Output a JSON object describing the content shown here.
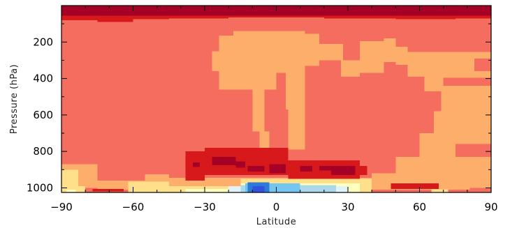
{
  "chart_data": {
    "type": "heatmap",
    "title": "",
    "xlabel": "Latitude",
    "ylabel": "Pressure (hPa)",
    "xlim": [
      -90,
      90
    ],
    "ylim": [
      1025,
      0
    ],
    "x_ticks": [
      -90,
      -60,
      -30,
      0,
      30,
      60,
      90
    ],
    "y_ticks": [
      200,
      400,
      600,
      800,
      1000
    ],
    "colors": {
      "dark_red": "#a50026",
      "red": "#d7191c",
      "salmon": "#f46d5e",
      "light_orange": "#fdae6b",
      "pale_yellow": "#fee08b",
      "cream": "#ffffbf",
      "light_cyan": "#e0f3f8",
      "sky": "#abd9e9",
      "cyan": "#74c6f2",
      "blue": "#2c7bd6",
      "dark_blue": "#3350e0"
    },
    "background_class": "salmon",
    "regions": [
      {
        "c": "dark_red",
        "lat": [
          -90,
          90
        ],
        "p": [
          0,
          55
        ]
      },
      {
        "c": "red",
        "lat": [
          -90,
          -75
        ],
        "p": [
          55,
          80
        ]
      },
      {
        "c": "red",
        "lat": [
          -75,
          -60
        ],
        "p": [
          55,
          90
        ]
      },
      {
        "c": "red",
        "lat": [
          -60,
          -45
        ],
        "p": [
          55,
          75
        ]
      },
      {
        "c": "red",
        "lat": [
          -45,
          -20
        ],
        "p": [
          55,
          70
        ]
      },
      {
        "c": "red",
        "lat": [
          -20,
          20
        ],
        "p": [
          55,
          65
        ]
      },
      {
        "c": "red",
        "lat": [
          20,
          50
        ],
        "p": [
          55,
          70
        ]
      },
      {
        "c": "red",
        "lat": [
          50,
          75
        ],
        "p": [
          55,
          75
        ]
      },
      {
        "c": "red",
        "lat": [
          75,
          90
        ],
        "p": [
          55,
          70
        ]
      },
      {
        "c": "light_orange",
        "lat": [
          -27,
          -24
        ],
        "p": [
          250,
          360
        ]
      },
      {
        "c": "light_orange",
        "lat": [
          -24,
          -18
        ],
        "p": [
          165,
          460
        ]
      },
      {
        "c": "light_orange",
        "lat": [
          -18,
          0
        ],
        "p": [
          140,
          460
        ]
      },
      {
        "c": "light_orange",
        "lat": [
          0,
          12
        ],
        "p": [
          140,
          370
        ]
      },
      {
        "c": "light_orange",
        "lat": [
          12,
          18
        ],
        "p": [
          155,
          330
        ]
      },
      {
        "c": "light_orange",
        "lat": [
          18,
          28
        ],
        "p": [
          210,
          300
        ]
      },
      {
        "c": "light_orange",
        "lat": [
          -10,
          -5
        ],
        "p": [
          460,
          690
        ]
      },
      {
        "c": "light_orange",
        "lat": [
          -7,
          -3
        ],
        "p": [
          690,
          800
        ]
      },
      {
        "c": "light_orange",
        "lat": [
          4,
          12
        ],
        "p": [
          370,
          570
        ]
      },
      {
        "c": "light_orange",
        "lat": [
          5,
          12
        ],
        "p": [
          570,
          790
        ]
      },
      {
        "c": "light_orange",
        "lat": [
          27,
          35
        ],
        "p": [
          300,
          390
        ]
      },
      {
        "c": "light_orange",
        "lat": [
          35,
          45
        ],
        "p": [
          195,
          370
        ]
      },
      {
        "c": "light_orange",
        "lat": [
          45,
          50
        ],
        "p": [
          180,
          310
        ]
      },
      {
        "c": "light_orange",
        "lat": [
          50,
          55
        ],
        "p": [
          225,
          325
        ]
      },
      {
        "c": "light_orange",
        "lat": [
          55,
          62
        ],
        "p": [
          255,
          390
        ]
      },
      {
        "c": "light_orange",
        "lat": [
          62,
          90
        ],
        "p": [
          255,
          470
        ]
      },
      {
        "c": "light_orange",
        "lat": [
          69,
          75
        ],
        "p": [
          470,
          580
        ]
      },
      {
        "c": "light_orange",
        "lat": [
          75,
          90
        ],
        "p": [
          470,
          760
        ]
      },
      {
        "c": "light_orange",
        "lat": [
          66,
          75
        ],
        "p": [
          580,
          700
        ]
      },
      {
        "c": "light_orange",
        "lat": [
          60,
          75
        ],
        "p": [
          700,
          830
        ]
      },
      {
        "c": "light_orange",
        "lat": [
          50,
          90
        ],
        "p": [
          830,
          920
        ]
      },
      {
        "c": "light_orange",
        "lat": [
          40,
          90
        ],
        "p": [
          920,
          1010
        ]
      },
      {
        "c": "light_orange",
        "lat": [
          -90,
          -75
        ],
        "p": [
          870,
          1000
        ]
      },
      {
        "c": "light_orange",
        "lat": [
          -75,
          -55
        ],
        "p": [
          960,
          1010
        ]
      },
      {
        "c": "light_orange",
        "lat": [
          -55,
          -45
        ],
        "p": [
          925,
          1010
        ]
      },
      {
        "c": "light_orange",
        "lat": [
          -45,
          40
        ],
        "p": [
          945,
          1010
        ]
      },
      {
        "c": "salmon",
        "lat": [
          70,
          90
        ],
        "p": [
          395,
          440
        ]
      },
      {
        "c": "salmon",
        "lat": [
          83,
          90
        ],
        "p": [
          290,
          360
        ]
      },
      {
        "c": "salmon",
        "lat": [
          81,
          90
        ],
        "p": [
          1000,
          1012
        ]
      },
      {
        "c": "red",
        "lat": [
          -38,
          -30
        ],
        "p": [
          800,
          960
        ]
      },
      {
        "c": "red",
        "lat": [
          -30,
          5
        ],
        "p": [
          780,
          930
        ]
      },
      {
        "c": "red",
        "lat": [
          5,
          35
        ],
        "p": [
          850,
          950
        ]
      },
      {
        "c": "red",
        "lat": [
          35,
          38
        ],
        "p": [
          880,
          930
        ]
      },
      {
        "c": "red",
        "lat": [
          48,
          68
        ],
        "p": [
          975,
          1005
        ]
      },
      {
        "c": "red",
        "lat": [
          -77,
          -64
        ],
        "p": [
          1005,
          1020
        ]
      },
      {
        "c": "dark_red",
        "lat": [
          -35,
          -32
        ],
        "p": [
          860,
          885
        ]
      },
      {
        "c": "dark_red",
        "lat": [
          -27,
          -17
        ],
        "p": [
          830,
          875
        ]
      },
      {
        "c": "dark_red",
        "lat": [
          -17,
          -13
        ],
        "p": [
          855,
          890
        ]
      },
      {
        "c": "dark_red",
        "lat": [
          -12,
          -5
        ],
        "p": [
          880,
          910
        ]
      },
      {
        "c": "dark_red",
        "lat": [
          -3,
          4
        ],
        "p": [
          870,
          920
        ]
      },
      {
        "c": "dark_red",
        "lat": [
          10,
          15
        ],
        "p": [
          880,
          910
        ]
      },
      {
        "c": "dark_red",
        "lat": [
          18,
          23
        ],
        "p": [
          880,
          905
        ]
      },
      {
        "c": "dark_red",
        "lat": [
          23,
          33
        ],
        "p": [
          880,
          930
        ]
      },
      {
        "c": "pale_yellow",
        "lat": [
          -90,
          -83
        ],
        "p": [
          900,
          1025
        ]
      },
      {
        "c": "pale_yellow",
        "lat": [
          -83,
          -80
        ],
        "p": [
          990,
          1025
        ]
      },
      {
        "c": "pale_yellow",
        "lat": [
          -62,
          -45
        ],
        "p": [
          965,
          1025
        ]
      },
      {
        "c": "pale_yellow",
        "lat": [
          -45,
          -15
        ],
        "p": [
          990,
          1025
        ]
      },
      {
        "c": "pale_yellow",
        "lat": [
          -15,
          40
        ],
        "p": [
          950,
          1025
        ]
      },
      {
        "c": "pale_yellow",
        "lat": [
          65,
          72
        ],
        "p": [
          1008,
          1025
        ]
      },
      {
        "c": "cream",
        "lat": [
          -88,
          -84
        ],
        "p": [
          1010,
          1025
        ]
      },
      {
        "c": "cream",
        "lat": [
          -38,
          -15
        ],
        "p": [
          1005,
          1025
        ]
      },
      {
        "c": "cream",
        "lat": [
          -15,
          35
        ],
        "p": [
          975,
          1025
        ]
      },
      {
        "c": "light_cyan",
        "lat": [
          -20,
          30
        ],
        "p": [
          990,
          1025
        ]
      },
      {
        "c": "sky",
        "lat": [
          -15,
          25
        ],
        "p": [
          985,
          1025
        ]
      },
      {
        "c": "cyan",
        "lat": [
          -13,
          10
        ],
        "p": [
          975,
          1025
        ]
      },
      {
        "c": "blue",
        "lat": [
          -12,
          -3
        ],
        "p": [
          970,
          1025
        ]
      },
      {
        "c": "dark_blue",
        "lat": [
          -10,
          -5
        ],
        "p": [
          990,
          1025
        ]
      }
    ]
  }
}
